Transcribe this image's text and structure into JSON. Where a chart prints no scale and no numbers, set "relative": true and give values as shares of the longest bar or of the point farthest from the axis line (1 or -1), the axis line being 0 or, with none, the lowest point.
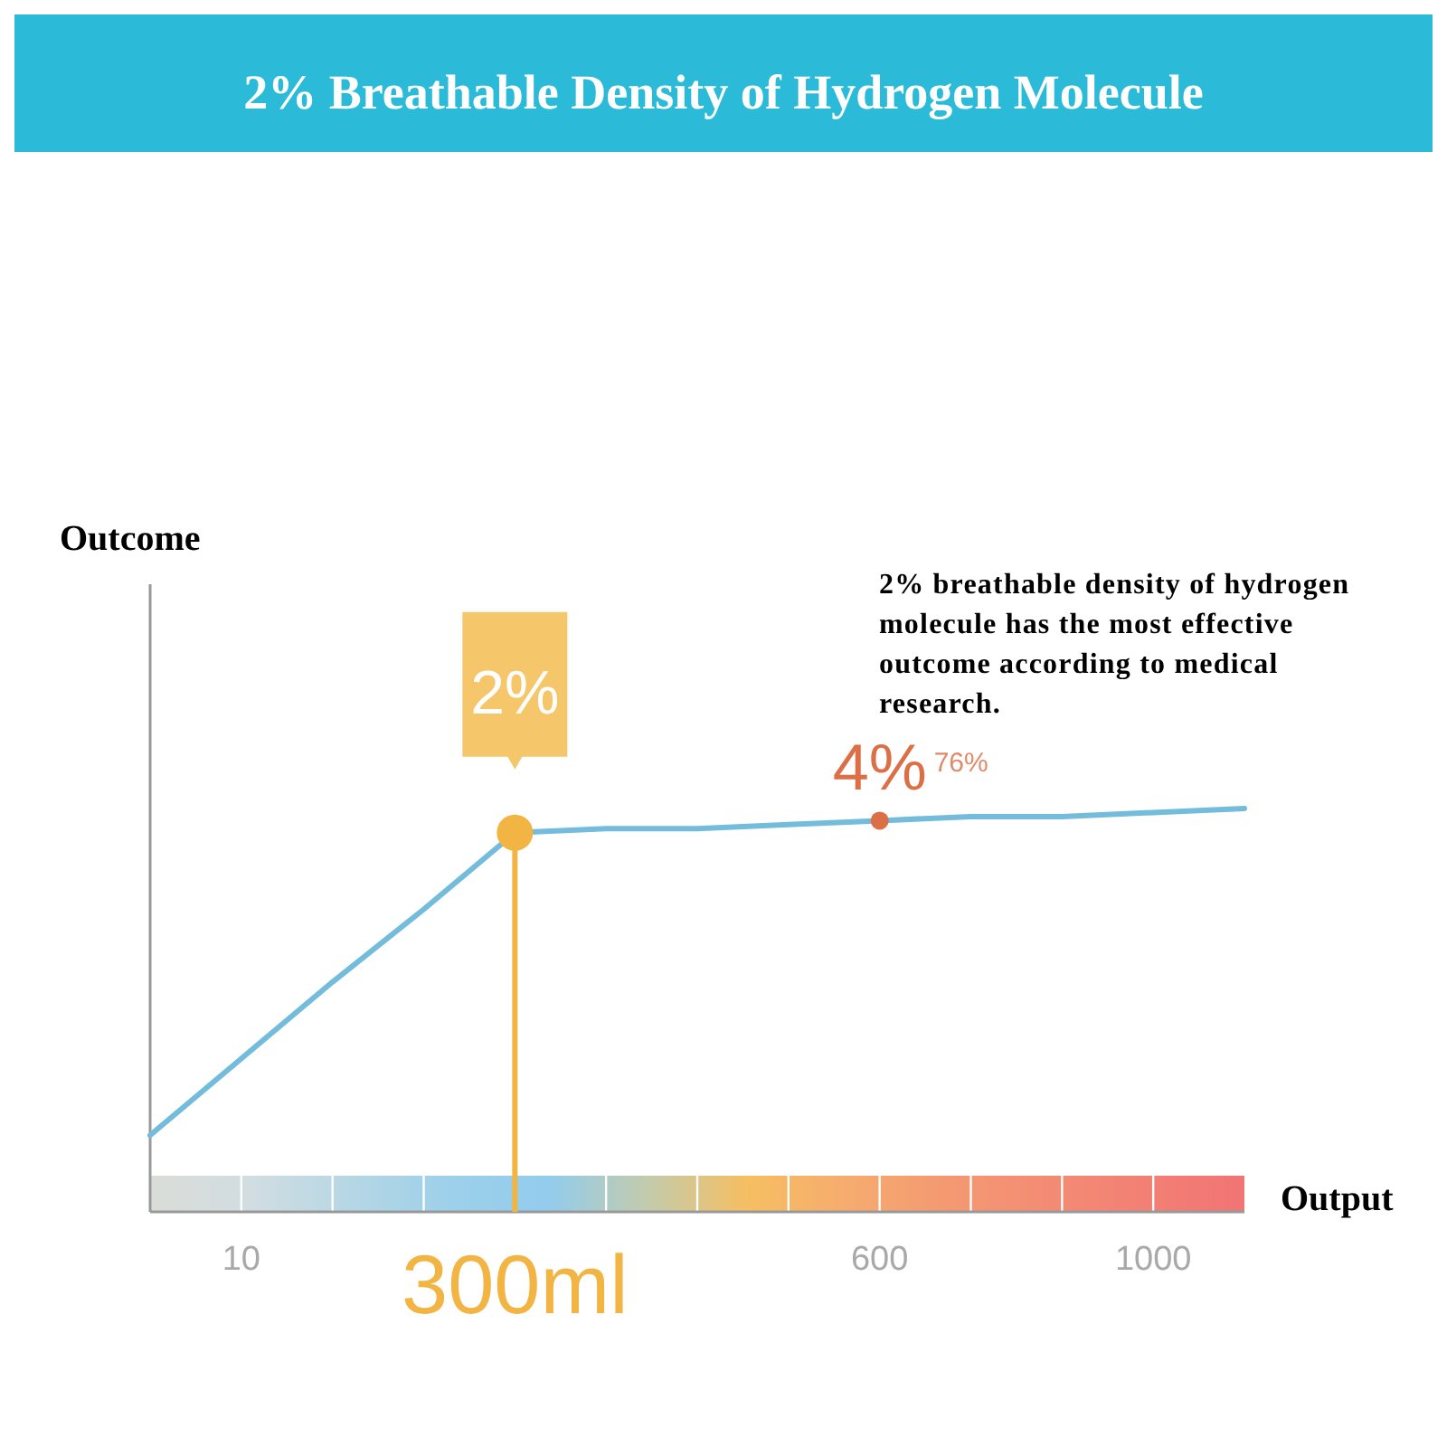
{
  "chart_data": {
    "type": "line",
    "relative": true,
    "title": "2% Breathable Density of Hydrogen Molecule",
    "xlabel": "Output",
    "categories": [
      null,
      "10",
      null,
      null,
      "300ml",
      null,
      null,
      null,
      "600",
      null,
      null,
      "1000",
      null
    ],
    "series": [
      {
        "color": "#74bcdb",
        "values": [
          0.19,
          0.38,
          0.57,
          0.75,
          0.94,
          0.95,
          0.95,
          0.96,
          0.97,
          0.98,
          0.98,
          0.99,
          1
        ]
      }
    ],
    "ref_lines": [
      {
        "axis": "x",
        "value": "300ml",
        "color": "#f2b443"
      }
    ],
    "annotations": [
      {
        "text": "2%",
        "x": "300ml",
        "y": 0.94
      },
      {
        "text": "4%",
        "x": "600",
        "y": 0.97
      },
      {
        "text": "76%",
        "x": "600",
        "y": 0.97
      },
      "Outcome",
      "2% breathable density of hydrogen molecule has the most effective outcome according to medical research."
    ],
    "line_style": "solid"
  }
}
